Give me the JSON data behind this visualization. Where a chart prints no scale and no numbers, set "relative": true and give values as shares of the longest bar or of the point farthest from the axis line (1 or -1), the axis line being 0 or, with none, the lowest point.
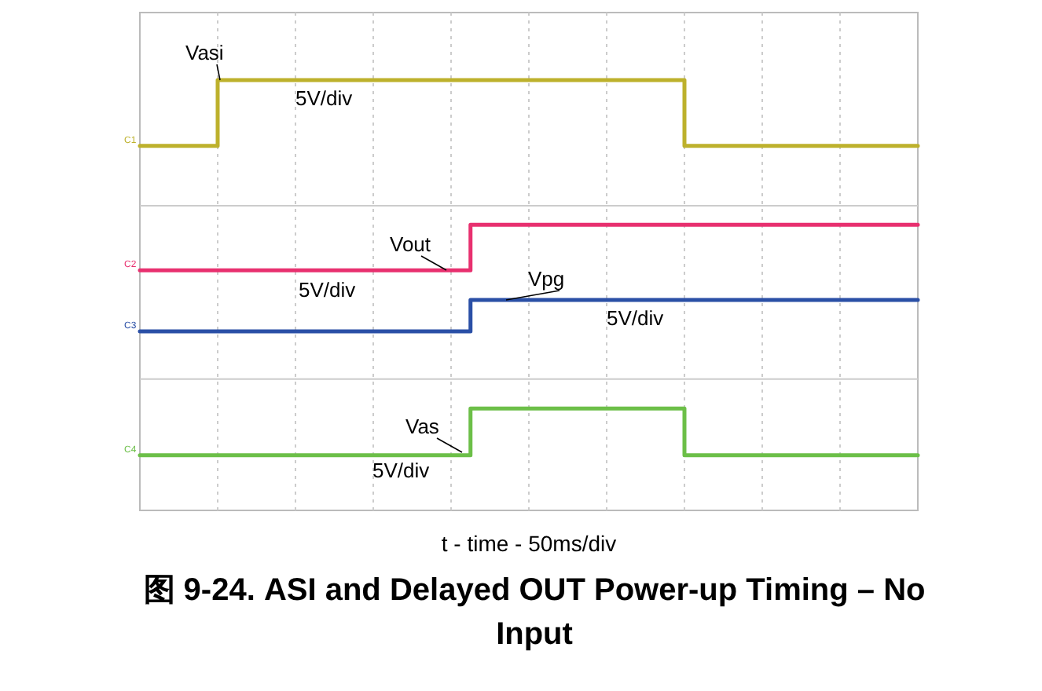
{
  "chart_data": {
    "type": "step",
    "relative": true,
    "title": "图 9-24. ASI and Delayed OUT Power-up Timing – No Input",
    "xlabel": "t - time - 50ms/div",
    "grid": "x",
    "line_style": "solid",
    "categories": [
      null,
      null,
      null,
      null,
      null,
      null,
      null,
      null,
      null,
      null,
      null,
      null,
      null,
      null,
      null,
      null,
      null,
      null,
      null,
      null,
      null,
      null,
      null,
      null,
      null,
      null,
      null,
      null,
      null,
      null,
      null,
      null,
      null,
      null,
      null,
      null,
      null,
      null,
      null,
      null,
      null
    ],
    "series": [
      {
        "name": "Vasi",
        "color": "#bdb12c",
        "values": [
          0.847,
          0.847,
          0.847,
          0.847,
          1,
          1,
          1,
          1,
          1,
          1,
          1,
          1,
          1,
          1,
          1,
          1,
          1,
          1,
          1,
          1,
          1,
          1,
          1,
          1,
          1,
          1,
          1,
          1,
          0.847,
          0.847,
          0.847,
          0.847,
          0.847,
          0.847,
          0.847,
          0.847,
          0.847,
          0.847,
          0.847,
          0.847,
          0.847
        ]
      },
      {
        "name": "Vout",
        "color": "#e8306f",
        "values": [
          0.558,
          0.558,
          0.558,
          0.558,
          0.558,
          0.558,
          0.558,
          0.558,
          0.558,
          0.558,
          0.558,
          0.558,
          0.558,
          0.558,
          0.558,
          0.558,
          0.558,
          0.664,
          0.664,
          0.664,
          0.664,
          0.664,
          0.664,
          0.664,
          0.664,
          0.664,
          0.664,
          0.664,
          0.664,
          0.664,
          0.664,
          0.664,
          0.664,
          0.664,
          0.664,
          0.664,
          0.664,
          0.664,
          0.664,
          0.664,
          0.664
        ]
      },
      {
        "name": "Vpg",
        "color": "#2a4fa6",
        "values": [
          0.416,
          0.416,
          0.416,
          0.416,
          0.416,
          0.416,
          0.416,
          0.416,
          0.416,
          0.416,
          0.416,
          0.416,
          0.416,
          0.416,
          0.416,
          0.416,
          0.416,
          0.489,
          0.489,
          0.489,
          0.489,
          0.489,
          0.489,
          0.489,
          0.489,
          0.489,
          0.489,
          0.489,
          0.489,
          0.489,
          0.489,
          0.489,
          0.489,
          0.489,
          0.489,
          0.489,
          0.489,
          0.489,
          0.489,
          0.489,
          0.489
        ]
      },
      {
        "name": "Vas",
        "color": "#6cbf48",
        "values": [
          0.128,
          0.128,
          0.128,
          0.128,
          0.128,
          0.128,
          0.128,
          0.128,
          0.128,
          0.128,
          0.128,
          0.128,
          0.128,
          0.128,
          0.128,
          0.128,
          0.128,
          0.237,
          0.237,
          0.237,
          0.237,
          0.237,
          0.237,
          0.237,
          0.237,
          0.237,
          0.237,
          0.237,
          0.128,
          0.128,
          0.128,
          0.128,
          0.128,
          0.128,
          0.128,
          0.128,
          0.128,
          0.128,
          0.128,
          0.128,
          0.128
        ]
      }
    ],
    "ref_lines": [
      {
        "axis": "y",
        "value": 0.708,
        "color": "#cccccc"
      },
      {
        "axis": "y",
        "value": 0.305,
        "color": "#cccccc"
      }
    ],
    "annotations": [
      "5V/div",
      "5V/div",
      "5V/div",
      "5V/div",
      "C1",
      "C2",
      "C3",
      "C4"
    ]
  }
}
